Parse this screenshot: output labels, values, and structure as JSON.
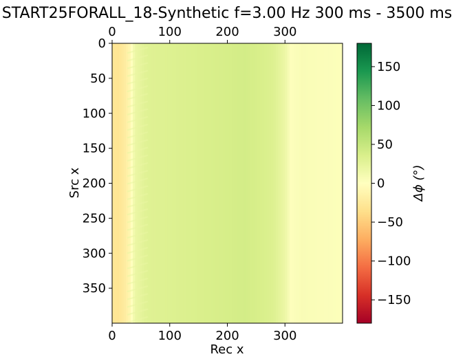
{
  "chart_data": {
    "type": "heatmap",
    "title": "START25FORALL_18-Synthetic f=3.00 Hz 300 ms - 3500 ms",
    "xlabel": "Rec x",
    "ylabel": "Src x",
    "xlim": [
      0,
      400
    ],
    "ylim": [
      0,
      400
    ],
    "x_ticks": [
      0,
      100,
      200,
      300
    ],
    "y_ticks": [
      0,
      50,
      100,
      150,
      200,
      250,
      300,
      350
    ],
    "x_tick_labels": [
      "0",
      "100",
      "200",
      "300"
    ],
    "y_tick_labels": [
      "0",
      "50",
      "100",
      "150",
      "200",
      "250",
      "300",
      "350"
    ],
    "colorbar": {
      "label": "Δϕ (°)",
      "colormap": "RdYlGn",
      "range": [
        -180,
        180
      ],
      "ticks": [
        -150,
        -100,
        -50,
        0,
        50,
        100,
        150
      ],
      "tick_labels": [
        "−150",
        "−100",
        "−50",
        "0",
        "50",
        "100",
        "150"
      ]
    },
    "column_profile": {
      "rec_x": [
        0,
        10,
        20,
        30,
        40,
        60,
        100,
        150,
        200,
        230,
        260,
        280,
        300,
        310,
        330,
        360,
        400
      ],
      "delta_phi_deg": [
        -28,
        -30,
        -24,
        -12,
        18,
        30,
        32,
        35,
        38,
        40,
        36,
        32,
        18,
        2,
        6,
        4,
        3
      ]
    },
    "grid": false
  },
  "colors": {
    "cmap_stops": [
      "#a50026",
      "#d73027",
      "#f46d43",
      "#fdae61",
      "#fee08b",
      "#ffffbf",
      "#d9ef8b",
      "#a6d96a",
      "#66bd63",
      "#1a9850",
      "#006837"
    ]
  }
}
